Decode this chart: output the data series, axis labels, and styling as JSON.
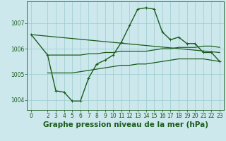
{
  "bg_color": "#cce8ed",
  "grid_color": "#99cccc",
  "line_color": "#1a5c1a",
  "title": "Graphe pression niveau de la mer (hPa)",
  "title_fontsize": 7.5,
  "ylim": [
    1003.6,
    1007.85
  ],
  "xlim": [
    -0.5,
    23.5
  ],
  "yticks": [
    1004,
    1005,
    1006,
    1007
  ],
  "xticks": [
    0,
    2,
    3,
    4,
    5,
    6,
    7,
    8,
    9,
    10,
    11,
    12,
    13,
    14,
    15,
    16,
    17,
    18,
    19,
    20,
    21,
    22,
    23
  ],
  "series": [
    {
      "x": [
        0,
        23
      ],
      "y": [
        1006.55,
        1005.85
      ],
      "marker": false,
      "linewidth": 0.9
    },
    {
      "x": [
        2,
        3,
        4,
        5,
        6,
        7,
        8,
        9,
        10,
        11,
        12,
        13,
        14,
        15,
        16,
        17,
        18,
        19,
        20,
        21,
        22,
        23
      ],
      "y": [
        1005.75,
        1005.75,
        1005.75,
        1005.75,
        1005.75,
        1005.8,
        1005.8,
        1005.85,
        1005.85,
        1005.9,
        1005.9,
        1005.9,
        1005.9,
        1005.95,
        1006.0,
        1006.0,
        1006.05,
        1006.05,
        1006.05,
        1006.1,
        1006.1,
        1006.05
      ],
      "marker": false,
      "linewidth": 0.9
    },
    {
      "x": [
        2,
        3,
        4,
        5,
        6,
        7,
        8,
        9,
        10,
        11,
        12,
        13,
        14,
        15,
        16,
        17,
        18,
        19,
        20,
        21,
        22,
        23
      ],
      "y": [
        1005.05,
        1005.05,
        1005.05,
        1005.05,
        1005.1,
        1005.15,
        1005.2,
        1005.25,
        1005.3,
        1005.35,
        1005.35,
        1005.4,
        1005.4,
        1005.45,
        1005.5,
        1005.55,
        1005.6,
        1005.6,
        1005.6,
        1005.6,
        1005.55,
        1005.5
      ],
      "marker": false,
      "linewidth": 0.9
    },
    {
      "x": [
        0,
        2,
        3,
        4,
        5,
        6,
        7,
        8,
        9,
        10,
        11,
        12,
        13,
        14,
        15,
        16,
        17,
        18,
        19,
        20,
        21,
        22,
        23
      ],
      "y": [
        1006.55,
        1005.75,
        1004.35,
        1004.3,
        1003.95,
        1003.95,
        1004.85,
        1005.4,
        1005.55,
        1005.75,
        1006.25,
        1006.9,
        1007.55,
        1007.6,
        1007.55,
        1006.65,
        1006.35,
        1006.45,
        1006.2,
        1006.2,
        1005.85,
        1005.85,
        1005.5
      ],
      "marker": true,
      "linewidth": 1.0
    }
  ]
}
